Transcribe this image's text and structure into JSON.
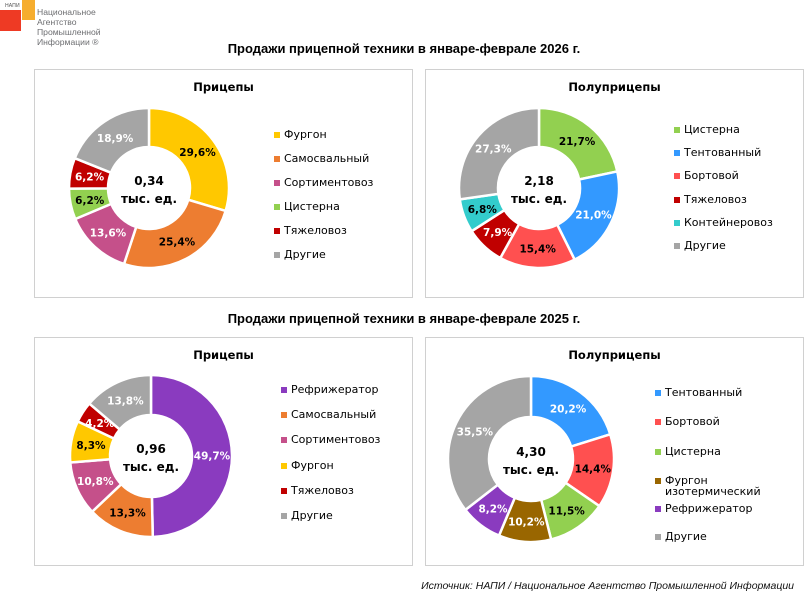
{
  "logo": {
    "abbr": "НАПИ",
    "line1": "Национальное",
    "line2": "Агентство",
    "line3": "Промышленной",
    "line4": "Информации ®",
    "colors": {
      "red": "#ee3a24",
      "orange": "#f6ad2e",
      "text": "#6d6e71"
    }
  },
  "sections": [
    {
      "title": "Продажи прицепной техники в январе-феврале 2026 г."
    },
    {
      "title": "Продажи прицепной техники в январе-феврале 2025 г."
    }
  ],
  "source": "Источник: НАПИ / Национальное Агентство Промышленной Информации",
  "chart_data": [
    {
      "type": "pie",
      "variant": "donut",
      "period": "2026",
      "title": "Прицепы",
      "center_value": "0,34",
      "center_unit": "тыс. ед.",
      "categories": [
        "Фургон",
        "Самосвальный",
        "Сортиментовоз",
        "Цистерна",
        "Тяжеловоз",
        "Другие"
      ],
      "values": [
        29.6,
        25.4,
        13.6,
        6.2,
        6.2,
        18.9
      ],
      "labels": [
        "29,6%",
        "25,4%",
        "13,6%",
        "6,2%",
        "6,2%",
        "18,9%"
      ],
      "colors": [
        "#ffc800",
        "#ed7d31",
        "#c5508a",
        "#92d050",
        "#c00000",
        "#a5a5a5"
      ],
      "label_colors": [
        "#000000",
        "#000000",
        "#ffffff",
        "#000000",
        "#ffffff",
        "#ffffff"
      ],
      "legend": [
        "Фургон",
        "Самосвальный",
        "Сортиментовоз",
        "Цистерна",
        "Тяжеловоз",
        "Другие"
      ],
      "legend_position": "right"
    },
    {
      "type": "pie",
      "variant": "donut",
      "period": "2026",
      "title": "Полуприцепы",
      "center_value": "2,18",
      "center_unit": "тыс. ед.",
      "categories": [
        "Цистерна",
        "Тентованный",
        "Бортовой",
        "Тяжеловоз",
        "Контейнеровоз",
        "Другие"
      ],
      "values": [
        21.7,
        21.0,
        15.4,
        7.9,
        6.8,
        27.3
      ],
      "labels": [
        "21,7%",
        "21,0%",
        "15,4%",
        "7,9%",
        "6,8%",
        "27,3%"
      ],
      "colors": [
        "#92d050",
        "#3399ff",
        "#ff5050",
        "#c00000",
        "#33cccc",
        "#a5a5a5"
      ],
      "label_colors": [
        "#000000",
        "#ffffff",
        "#000000",
        "#ffffff",
        "#000000",
        "#ffffff"
      ],
      "legend": [
        "Цистерна",
        "Тентованный",
        "Бортовой",
        "Тяжеловоз",
        "Контейнеровоз",
        "Другие"
      ],
      "legend_position": "right"
    },
    {
      "type": "pie",
      "variant": "donut",
      "period": "2025",
      "title": "Прицепы",
      "center_value": "0,96",
      "center_unit": "тыс. ед.",
      "categories": [
        "Рефрижератор",
        "Самосвальный",
        "Сортиментовоз",
        "Фургон",
        "Тяжеловоз",
        "Другие"
      ],
      "values": [
        49.7,
        13.3,
        10.8,
        8.3,
        4.2,
        13.8
      ],
      "labels": [
        "49,7%",
        "13,3%",
        "10,8%",
        "8,3%",
        "4,2%",
        "13,8%"
      ],
      "colors": [
        "#8a3bbf",
        "#ed7d31",
        "#c5508a",
        "#ffc800",
        "#c00000",
        "#a5a5a5"
      ],
      "label_colors": [
        "#ffffff",
        "#000000",
        "#ffffff",
        "#000000",
        "#ffffff",
        "#ffffff"
      ],
      "legend": [
        "Рефрижератор",
        "Самосвальный",
        "Сортиментовоз",
        "Фургон",
        "Тяжеловоз",
        "Другие"
      ],
      "legend_position": "right"
    },
    {
      "type": "pie",
      "variant": "donut",
      "period": "2025",
      "title": "Полуприцепы",
      "center_value": "4,30",
      "center_unit": "тыс. ед.",
      "categories": [
        "Тентованный",
        "Бортовой",
        "Цистерна",
        "Фургон изотермический",
        "Рефрижератор",
        "Другие"
      ],
      "values": [
        20.2,
        14.4,
        11.5,
        10.2,
        8.2,
        35.5
      ],
      "labels": [
        "20,2%",
        "14,4%",
        "11,5%",
        "10,2%",
        "8,2%",
        "35,5%"
      ],
      "colors": [
        "#3399ff",
        "#ff5050",
        "#92d050",
        "#996600",
        "#8a3bbf",
        "#a5a5a5"
      ],
      "label_colors": [
        "#ffffff",
        "#000000",
        "#000000",
        "#ffffff",
        "#ffffff",
        "#ffffff"
      ],
      "legend": [
        "Тентованный",
        "Бортовой",
        "Цистерна",
        "Фургон изотермический",
        "Рефрижератор",
        "Другие"
      ],
      "legend_lines": [
        [
          "Тентованный"
        ],
        [
          "Бортовой"
        ],
        [
          "Цистерна"
        ],
        [
          "Фургон",
          "изотермический"
        ],
        [
          "Рефрижератор"
        ],
        [
          "Другие"
        ]
      ],
      "legend_position": "right"
    }
  ]
}
